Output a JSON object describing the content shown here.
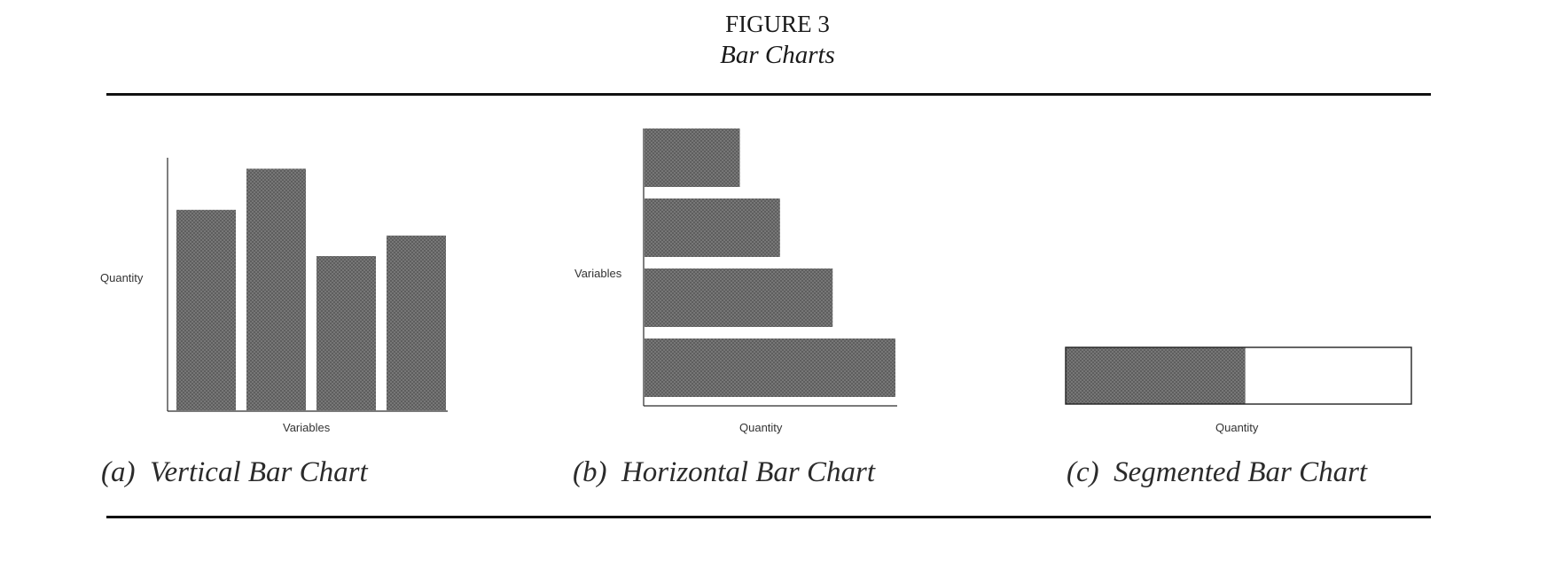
{
  "figure": {
    "number": "FIGURE 3",
    "caption": "Bar Charts"
  },
  "colors": {
    "bar_fill": "#707070",
    "segment_empty": "#ffffff",
    "rule": "#111111"
  },
  "chart_data": [
    {
      "type": "bar",
      "orientation": "vertical",
      "caption": "(a)  Vertical Bar Chart",
      "xlabel": "Variables",
      "ylabel": "Quantity",
      "categories": [
        "",
        "",
        "",
        ""
      ],
      "values": [
        78,
        94,
        60,
        68
      ],
      "ylim": [
        0,
        100
      ],
      "grid": false
    },
    {
      "type": "bar",
      "orientation": "horizontal",
      "caption": "(b)  Horizontal Bar Chart",
      "xlabel": "Quantity",
      "ylabel": "Variables",
      "categories": [
        "",
        "",
        "",
        ""
      ],
      "values": [
        38,
        54,
        75,
        100
      ],
      "xlim": [
        0,
        100
      ],
      "grid": false
    },
    {
      "type": "bar",
      "orientation": "segmented",
      "caption": "(c)  Segmented Bar Chart",
      "xlabel": "Quantity",
      "segments": [
        {
          "value": 52,
          "filled": true
        },
        {
          "value": 48,
          "filled": false
        }
      ],
      "total": 100,
      "grid": false
    }
  ]
}
